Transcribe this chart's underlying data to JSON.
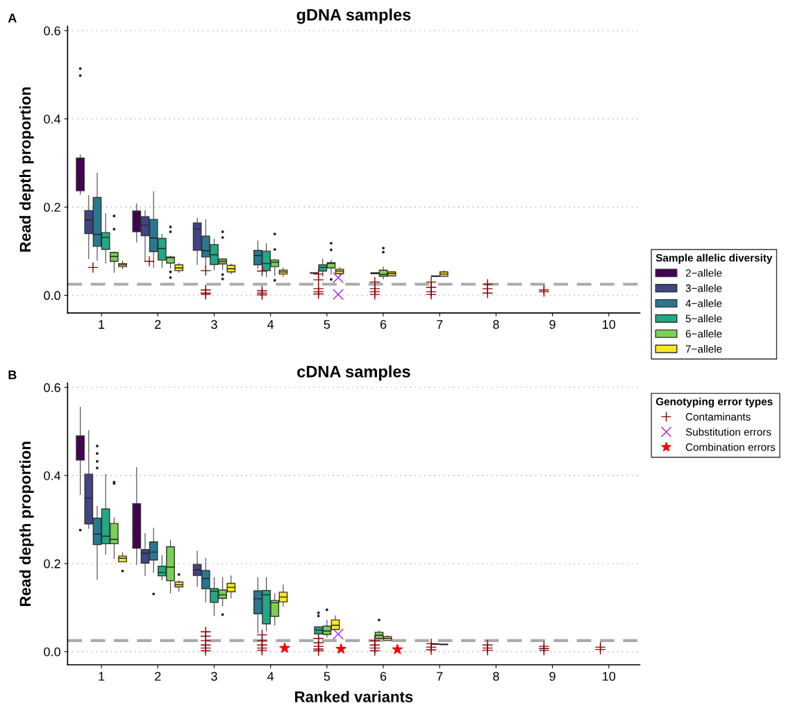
{
  "chart_data": [
    {
      "type": "box",
      "title": "gDNA samples",
      "ylabel": "Read depth proportion",
      "annotations": [
        "A"
      ],
      "legend_title": "Sample allelic diversity",
      "categories": [
        "1",
        "2",
        "3",
        "4",
        "5",
        "6",
        "7",
        "8",
        "9",
        "10"
      ],
      "ylim": [
        -0.04,
        0.61
      ],
      "yticks": [
        {
          "value": 0,
          "label": "0.0"
        },
        0.2,
        0.4,
        0.6
      ],
      "grid": "y",
      "legend": "right",
      "tick_labels": "y",
      "ref_lines": [
        {
          "axis": "y",
          "value": 0.025,
          "color": "#aaaaaa",
          "line_style": "dashed"
        }
      ],
      "series": [
        {
          "name": "2−allele",
          "type": "box",
          "color": "#440154",
          "boxes": [
            {
              "low": 0.228,
              "q1": 0.237,
              "median": 0.261,
              "q3": 0.311,
              "high": 0.319,
              "outliers": [
                0.514,
                0.498
              ]
            },
            {
              "low": 0.12,
              "q1": 0.144,
              "median": 0.173,
              "q3": 0.191,
              "high": 0.208
            },
            null,
            null,
            null,
            null,
            null,
            null,
            null,
            null
          ]
        },
        {
          "name": "3−allele",
          "type": "box",
          "color": "#414487",
          "boxes": [
            {
              "low": 0.082,
              "q1": 0.14,
              "median": 0.171,
              "q3": 0.192,
              "high": 0.227
            },
            {
              "low": 0.076,
              "q1": 0.135,
              "median": 0.159,
              "q3": 0.178,
              "high": 0.193
            },
            {
              "low": 0.069,
              "q1": 0.102,
              "median": 0.15,
              "q3": 0.164,
              "high": 0.176
            },
            null,
            null,
            null,
            null,
            null,
            null,
            null
          ]
        },
        {
          "name": "4−allele",
          "type": "box",
          "color": "#2A788E",
          "boxes": [
            {
              "low": 0.078,
              "q1": 0.111,
              "median": 0.138,
              "q3": 0.222,
              "high": 0.278
            },
            {
              "low": 0.062,
              "q1": 0.099,
              "median": 0.13,
              "q3": 0.172,
              "high": 0.236
            },
            {
              "low": 0.061,
              "q1": 0.087,
              "median": 0.101,
              "q3": 0.134,
              "high": 0.172
            },
            {
              "low": 0.06,
              "q1": 0.069,
              "median": 0.09,
              "q3": 0.102,
              "high": 0.124
            },
            {
              "low": 0.049,
              "q1": 0.05,
              "median": 0.05,
              "q3": 0.051,
              "high": 0.051
            },
            {
              "low": 0.049,
              "q1": 0.049,
              "median": 0.05,
              "q3": 0.051,
              "high": 0.051
            },
            {
              "low": 0.042,
              "q1": 0.043,
              "median": 0.043,
              "q3": 0.044,
              "high": 0.044
            },
            null,
            null,
            null
          ]
        },
        {
          "name": "5−allele",
          "type": "box",
          "color": "#22A884",
          "boxes": [
            {
              "low": 0.072,
              "q1": 0.104,
              "median": 0.131,
              "q3": 0.142,
              "high": 0.186
            },
            {
              "low": 0.062,
              "q1": 0.08,
              "median": 0.106,
              "q3": 0.129,
              "high": 0.139
            },
            {
              "low": 0.057,
              "q1": 0.07,
              "median": 0.092,
              "q3": 0.115,
              "high": 0.128
            },
            {
              "low": 0.041,
              "q1": 0.056,
              "median": 0.072,
              "q3": 0.1,
              "high": 0.118
            },
            {
              "low": 0.042,
              "q1": 0.055,
              "median": 0.063,
              "q3": 0.069,
              "high": 0.083
            },
            null,
            null,
            null,
            null,
            null
          ]
        },
        {
          "name": "6−allele",
          "type": "box",
          "color": "#7AD151",
          "boxes": [
            {
              "low": 0.051,
              "q1": 0.077,
              "median": 0.088,
              "q3": 0.097,
              "high": 0.1,
              "outliers": [
                0.18,
                0.15
              ]
            },
            {
              "low": 0.061,
              "q1": 0.073,
              "median": 0.085,
              "q3": 0.087,
              "high": 0.09,
              "outliers": [
                0.155,
                0.144,
                0.053,
                0.04
              ]
            },
            {
              "low": 0.057,
              "q1": 0.071,
              "median": 0.077,
              "q3": 0.082,
              "high": 0.084,
              "outliers": [
                0.144,
                0.131,
                0.047,
                0.037
              ]
            },
            {
              "low": 0.044,
              "q1": 0.065,
              "median": 0.075,
              "q3": 0.08,
              "high": 0.083,
              "outliers": [
                0.139,
                0.104,
                0.034
              ]
            },
            {
              "low": 0.047,
              "q1": 0.062,
              "median": 0.072,
              "q3": 0.074,
              "high": 0.08,
              "outliers": [
                0.118,
                0.103,
                0.036
              ]
            },
            {
              "low": 0.036,
              "q1": 0.043,
              "median": 0.047,
              "q3": 0.057,
              "high": 0.065,
              "outliers": [
                0.107,
                0.098
              ]
            },
            null,
            null,
            null,
            null
          ]
        },
        {
          "name": "7−allele",
          "type": "box",
          "color": "#FDE725",
          "boxes": [
            {
              "low": 0.059,
              "q1": 0.065,
              "median": 0.069,
              "q3": 0.072,
              "high": 0.079
            },
            {
              "low": 0.051,
              "q1": 0.056,
              "median": 0.062,
              "q3": 0.069,
              "high": 0.073
            },
            {
              "low": 0.048,
              "q1": 0.053,
              "median": 0.06,
              "q3": 0.068,
              "high": 0.072
            },
            {
              "low": 0.042,
              "q1": 0.048,
              "median": 0.053,
              "q3": 0.057,
              "high": 0.063
            },
            {
              "low": 0.044,
              "q1": 0.049,
              "median": 0.055,
              "q3": 0.059,
              "high": 0.064
            },
            {
              "low": 0.043,
              "q1": 0.044,
              "median": 0.049,
              "q3": 0.053,
              "high": 0.055
            },
            {
              "low": 0.041,
              "q1": 0.043,
              "median": 0.048,
              "q3": 0.053,
              "high": 0.056
            },
            null,
            null,
            null
          ]
        },
        {
          "name": "Contaminants",
          "type": "scatter",
          "marker": "cross",
          "color": "#8B0000",
          "x": [
            "1",
            "2",
            "3",
            "3",
            "3",
            "3",
            "4",
            "4",
            "4",
            "4",
            "5",
            "5",
            "5",
            "5",
            "5",
            "6",
            "6",
            "6",
            "6",
            "7",
            "7",
            "7",
            "7",
            "8",
            "8",
            "8",
            "9",
            "9"
          ],
          "values": [
            0.063,
            0.077,
            0.056,
            0.012,
            0.005,
            0.002,
            0.055,
            0.01,
            0.005,
            0.001,
            0.048,
            0.035,
            0.015,
            0.008,
            0.003,
            0.03,
            0.015,
            0.008,
            0.002,
            0.03,
            0.018,
            0.008,
            0.002,
            0.025,
            0.015,
            0.005,
            0.012,
            0.008
          ]
        },
        {
          "name": "Substitution errors",
          "type": "scatter",
          "marker": "x",
          "color": "#A020F0",
          "x": [
            "5",
            "5"
          ],
          "values": [
            0.04,
            0.002
          ]
        }
      ]
    },
    {
      "type": "box",
      "title": "cDNA samples",
      "xlabel": "Ranked variants",
      "ylabel": "Read depth proportion",
      "annotations": [
        "B"
      ],
      "legend_title": "Genotyping error types",
      "categories": [
        "1",
        "2",
        "3",
        "4",
        "5",
        "6",
        "7",
        "8",
        "9",
        "10"
      ],
      "ylim": [
        -0.03,
        0.61
      ],
      "yticks": [
        {
          "value": 0,
          "label": "0.0"
        },
        0.2,
        0.4,
        0.6
      ],
      "grid": "y",
      "legend": "right",
      "ref_lines": [
        {
          "axis": "y",
          "value": 0.025,
          "color": "#aaaaaa",
          "line_style": "dashed"
        }
      ],
      "series": [
        {
          "name": "2−allele",
          "type": "box",
          "color": "#440154",
          "boxes": [
            {
              "low": 0.356,
              "q1": 0.435,
              "median": 0.466,
              "q3": 0.49,
              "high": 0.556,
              "outliers": [
                0.276
              ]
            },
            {
              "low": 0.197,
              "q1": 0.235,
              "median": 0.275,
              "q3": 0.336,
              "high": 0.419
            },
            null,
            null,
            null,
            null,
            null,
            null,
            null,
            null
          ]
        },
        {
          "name": "3−allele",
          "type": "box",
          "color": "#414487",
          "boxes": [
            {
              "low": 0.279,
              "q1": 0.29,
              "median": 0.349,
              "q3": 0.403,
              "high": 0.503
            },
            {
              "low": 0.172,
              "q1": 0.201,
              "median": 0.223,
              "q3": 0.232,
              "high": 0.269
            },
            {
              "low": 0.147,
              "q1": 0.173,
              "median": 0.186,
              "q3": 0.198,
              "high": 0.229
            },
            null,
            null,
            null,
            null,
            null,
            null,
            null
          ]
        },
        {
          "name": "4−allele",
          "type": "box",
          "color": "#2A788E",
          "boxes": [
            {
              "low": 0.163,
              "q1": 0.243,
              "median": 0.267,
              "q3": 0.303,
              "high": 0.331,
              "outliers": [
                0.467,
                0.45,
                0.432,
                0.417
              ]
            },
            {
              "low": 0.179,
              "q1": 0.208,
              "median": 0.226,
              "q3": 0.249,
              "high": 0.281,
              "outliers": [
                0.131
              ]
            },
            {
              "low": 0.112,
              "q1": 0.143,
              "median": 0.166,
              "q3": 0.184,
              "high": 0.213
            },
            {
              "low": 0.042,
              "q1": 0.086,
              "median": 0.12,
              "q3": 0.138,
              "high": 0.169
            },
            null,
            null,
            null,
            null,
            null,
            null
          ]
        },
        {
          "name": "5−allele",
          "type": "box",
          "color": "#22A884",
          "boxes": [
            {
              "low": 0.22,
              "q1": 0.245,
              "median": 0.262,
              "q3": 0.324,
              "high": 0.403
            },
            {
              "low": 0.162,
              "q1": 0.172,
              "median": 0.18,
              "q3": 0.194,
              "high": 0.219
            },
            {
              "low": 0.081,
              "q1": 0.112,
              "median": 0.137,
              "q3": 0.143,
              "high": 0.169
            },
            {
              "low": 0.046,
              "q1": 0.063,
              "median": 0.129,
              "q3": 0.139,
              "high": 0.169
            },
            {
              "low": 0.034,
              "q1": 0.04,
              "median": 0.049,
              "q3": 0.056,
              "high": 0.056,
              "outliers": [
                0.088,
                0.081
              ]
            },
            null,
            null,
            null,
            null,
            null
          ]
        },
        {
          "name": "6−allele",
          "type": "box",
          "color": "#7AD151",
          "boxes": [
            {
              "low": 0.211,
              "q1": 0.245,
              "median": 0.255,
              "q3": 0.291,
              "high": 0.305,
              "outliers": [
                0.385,
                0.382
              ]
            },
            {
              "low": 0.132,
              "q1": 0.161,
              "median": 0.192,
              "q3": 0.238,
              "high": 0.254
            },
            {
              "low": 0.103,
              "q1": 0.121,
              "median": 0.129,
              "q3": 0.14,
              "high": 0.169,
              "outliers": [
                0.084
              ]
            },
            {
              "low": 0.059,
              "q1": 0.08,
              "median": 0.111,
              "q3": 0.116,
              "high": 0.133
            },
            {
              "low": 0.032,
              "q1": 0.039,
              "median": 0.047,
              "q3": 0.058,
              "high": 0.072,
              "outliers": [
                0.095
              ]
            },
            {
              "low": 0.028,
              "q1": 0.03,
              "median": 0.037,
              "q3": 0.044,
              "high": 0.048,
              "outliers": [
                0.072
              ]
            },
            {
              "low": 0.016,
              "q1": 0.017,
              "median": 0.017,
              "q3": 0.018,
              "high": 0.018
            },
            null,
            null,
            null
          ]
        },
        {
          "name": "7−allele",
          "type": "box",
          "color": "#FDE725",
          "boxes": [
            {
              "low": 0.203,
              "q1": 0.204,
              "median": 0.212,
              "q3": 0.217,
              "high": 0.226,
              "outliers": [
                0.183
              ]
            },
            {
              "low": 0.136,
              "q1": 0.147,
              "median": 0.152,
              "q3": 0.158,
              "high": 0.162,
              "outliers": [
                0.175
              ]
            },
            {
              "low": 0.121,
              "q1": 0.136,
              "median": 0.146,
              "q3": 0.155,
              "high": 0.173
            },
            {
              "low": 0.102,
              "q1": 0.113,
              "median": 0.124,
              "q3": 0.135,
              "high": 0.152
            },
            {
              "low": 0.05,
              "q1": 0.05,
              "median": 0.06,
              "q3": 0.072,
              "high": 0.082
            },
            {
              "low": 0.025,
              "q1": 0.025,
              "median": 0.03,
              "q3": 0.034,
              "high": 0.037
            },
            {
              "low": 0.015,
              "q1": 0.016,
              "median": 0.016,
              "q3": 0.017,
              "high": 0.017
            },
            null,
            null,
            null
          ]
        },
        {
          "name": "Contaminants",
          "type": "scatter",
          "marker": "cross",
          "color": "#8B0000",
          "x": [
            "3",
            "3",
            "3",
            "3",
            "3",
            "3",
            "4",
            "4",
            "4",
            "4",
            "4",
            "5",
            "5",
            "5",
            "5",
            "5",
            "6",
            "6",
            "6",
            "6",
            "7",
            "7",
            "7",
            "8",
            "8",
            "8",
            "9",
            "9",
            "9",
            "10",
            "10"
          ],
          "values": [
            0.045,
            0.035,
            0.025,
            0.015,
            0.008,
            0.002,
            0.038,
            0.025,
            0.015,
            0.008,
            0.003,
            0.03,
            0.02,
            0.012,
            0.006,
            0.002,
            0.025,
            0.015,
            0.008,
            0.002,
            0.018,
            0.01,
            0.004,
            0.015,
            0.008,
            0.003,
            0.012,
            0.007,
            0.003,
            0.01,
            0.005
          ]
        },
        {
          "name": "Substitution errors",
          "type": "scatter",
          "marker": "x",
          "color": "#A020F0",
          "x": [
            "5"
          ],
          "values": [
            0.04
          ]
        },
        {
          "name": "Combination errors",
          "type": "scatter",
          "marker": "star",
          "color": "#FF0000",
          "x": [
            "4",
            "5",
            "6"
          ],
          "values": [
            0.008,
            0.006,
            0.005
          ]
        }
      ]
    }
  ]
}
